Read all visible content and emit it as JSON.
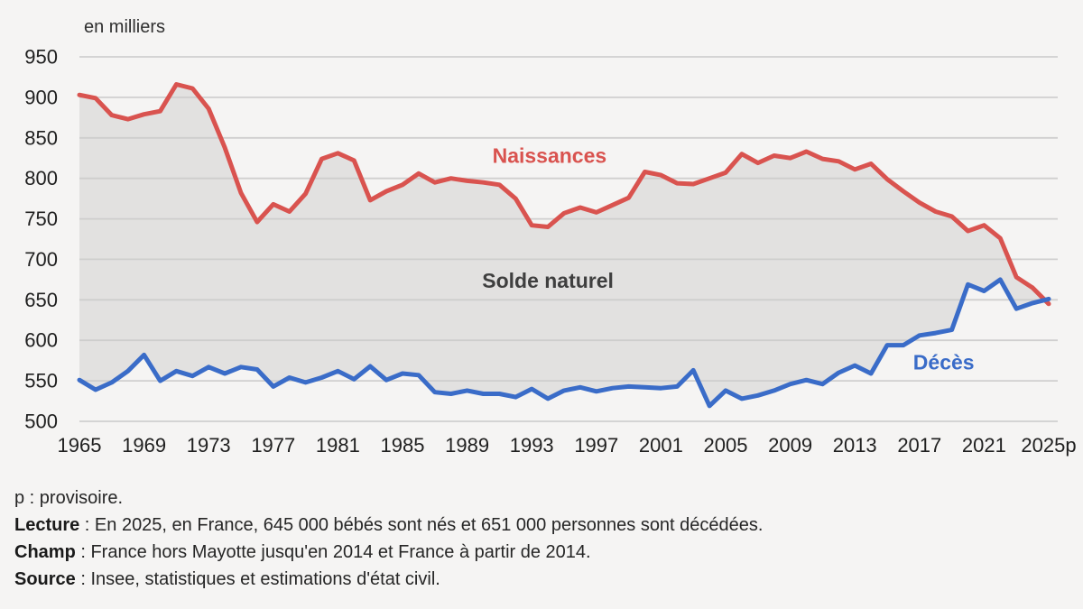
{
  "page": {
    "background": "#f5f4f3"
  },
  "chart_data": {
    "type": "line",
    "unit_label": "en milliers",
    "years": [
      1965,
      1966,
      1967,
      1968,
      1969,
      1970,
      1971,
      1972,
      1973,
      1974,
      1975,
      1976,
      1977,
      1978,
      1979,
      1980,
      1981,
      1982,
      1983,
      1984,
      1985,
      1986,
      1987,
      1988,
      1989,
      1990,
      1991,
      1992,
      1993,
      1994,
      1995,
      1996,
      1997,
      1998,
      1999,
      2000,
      2001,
      2002,
      2003,
      2004,
      2005,
      2006,
      2007,
      2008,
      2009,
      2010,
      2011,
      2012,
      2013,
      2014,
      2015,
      2016,
      2017,
      2018,
      2019,
      2020,
      2021,
      2022,
      2023,
      2024,
      2025
    ],
    "series": [
      {
        "name": "Naissances",
        "color": "#d9534f",
        "values": [
          903,
          899,
          878,
          873,
          879,
          883,
          916,
          911,
          886,
          838,
          782,
          746,
          768,
          759,
          781,
          824,
          831,
          822,
          773,
          784,
          792,
          806,
          795,
          800,
          797,
          795,
          792,
          775,
          742,
          740,
          757,
          764,
          758,
          767,
          776,
          808,
          804,
          794,
          793,
          800,
          807,
          830,
          819,
          828,
          825,
          833,
          824,
          821,
          811,
          818,
          799,
          784,
          770,
          759,
          753,
          735,
          742,
          726,
          678,
          665,
          645
        ]
      },
      {
        "name": "Décès",
        "color": "#3a6cc8",
        "values": [
          551,
          539,
          548,
          562,
          582,
          550,
          562,
          556,
          567,
          559,
          567,
          564,
          543,
          554,
          548,
          554,
          562,
          552,
          568,
          551,
          559,
          557,
          536,
          534,
          538,
          534,
          534,
          530,
          540,
          528,
          538,
          542,
          537,
          541,
          543,
          542,
          541,
          543,
          563,
          519,
          538,
          528,
          532,
          538,
          546,
          551,
          546,
          560,
          569,
          559,
          594,
          594,
          606,
          609,
          613,
          669,
          661,
          675,
          639,
          646,
          651
        ]
      }
    ],
    "area_between_label": "Solde naturel",
    "area_color": "#e2e1e0",
    "ylim": [
      500,
      950
    ],
    "ytick_step": 50,
    "yticks": [
      500,
      550,
      600,
      650,
      700,
      750,
      800,
      850,
      900,
      950
    ],
    "xtick_years": [
      1965,
      1969,
      1973,
      1977,
      1981,
      1985,
      1989,
      1993,
      1997,
      2001,
      2005,
      2009,
      2013,
      2017,
      2021,
      2025
    ],
    "xtick_last_label": "2025p",
    "grid": true,
    "gridline_color": "#cccccc",
    "tick_color": "#1f1f1f",
    "legend_position": "inline-annotations",
    "annotations": [
      {
        "id": "naissances-label",
        "text": "Naissances",
        "x": 1994.1,
        "y": 828,
        "color": "#d9534f"
      },
      {
        "id": "solde-naturel-label",
        "text": "Solde naturel",
        "x": 1994.0,
        "y": 674,
        "color": "#3f3f3f"
      },
      {
        "id": "deces-label",
        "text": "Décès",
        "x": 2018.5,
        "y": 573,
        "color": "#3a6cc8"
      }
    ]
  },
  "notes": [
    {
      "bold": "",
      "text": "p : provisoire."
    },
    {
      "bold": "Lecture",
      "text": " : En 2025, en France, 645 000 bébés sont nés et 651 000 personnes sont décédées."
    },
    {
      "bold": "Champ",
      "text": " : France hors Mayotte jusqu'en 2014 et France à partir de 2014."
    },
    {
      "bold": "Source",
      "text": " : Insee, statistiques et estimations d'état civil."
    }
  ]
}
